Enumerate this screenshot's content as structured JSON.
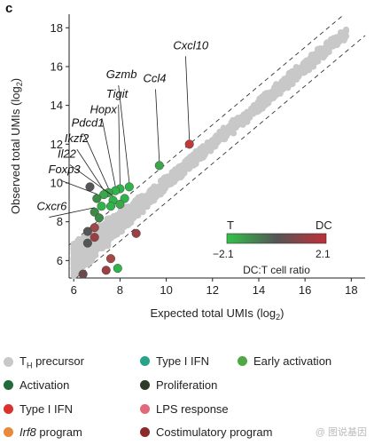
{
  "panel_label": "c",
  "chart_data": {
    "type": "scatter",
    "xlabel": "Expected total UMIs (log2)",
    "xlabel_main": "Expected total UMIs (log",
    "xlabel_sub": "2",
    "xlabel_end": ")",
    "ylabel": "Observed total UMIs (log2)",
    "ylabel_main": "Observed total UMIs (log",
    "ylabel_sub": "2",
    "ylabel_end": ")",
    "xlim": [
      5.8,
      18.6
    ],
    "ylim": [
      5.1,
      18.7
    ],
    "xticks": [
      "6",
      "8",
      "10",
      "12",
      "14",
      "16",
      "18"
    ],
    "xtick_values": [
      6,
      8,
      10,
      12,
      14,
      16,
      18
    ],
    "yticks": [
      "6",
      "8",
      "10",
      "12",
      "14",
      "16",
      "18"
    ],
    "ytick_values": [
      6,
      8,
      10,
      12,
      14,
      16,
      18
    ],
    "reference_lines": [
      {
        "name": "upper-bound",
        "offset": 1.0
      },
      {
        "name": "lower-bound",
        "offset": -1.0
      }
    ],
    "background_color": "#c8c8c8",
    "highlighted_points": [
      {
        "gene": "Cxcl10",
        "x": 11.0,
        "y": 12.0,
        "ratio": 2.1,
        "color": "#c0393b",
        "label_x": 10.3,
        "label_y": 16.9
      },
      {
        "gene": "Ccl4",
        "x": 9.7,
        "y": 10.9,
        "ratio": -1.3,
        "color": "#3aa84a",
        "label_x": 9.0,
        "label_y": 15.2
      },
      {
        "gene": "Gzmb",
        "x": 8.4,
        "y": 9.8,
        "ratio": -1.6,
        "color": "#2fb44a",
        "label_x": 7.4,
        "label_y": 15.4
      },
      {
        "gene": "Tigit",
        "x": 8.0,
        "y": 9.7,
        "ratio": -1.8,
        "color": "#2fb44a",
        "label_x": 7.4,
        "label_y": 14.4
      },
      {
        "gene": "Hopx",
        "x": 7.8,
        "y": 9.6,
        "ratio": -1.9,
        "color": "#2fb44a",
        "label_x": 6.7,
        "label_y": 13.6
      },
      {
        "gene": "Pdcd1",
        "x": 7.5,
        "y": 9.5,
        "ratio": -1.7,
        "color": "#3aa84a",
        "label_x": 5.9,
        "label_y": 12.9
      },
      {
        "gene": "Ikzf2",
        "x": 7.3,
        "y": 9.4,
        "ratio": -1.5,
        "color": "#3aa84a",
        "label_x": 5.6,
        "label_y": 12.1
      },
      {
        "gene": "Il22",
        "x": 7.7,
        "y": 9.1,
        "ratio": -1.9,
        "color": "#2fb44a",
        "label_x": 5.3,
        "label_y": 11.3
      },
      {
        "gene": "Foxp3",
        "x": 7.0,
        "y": 9.2,
        "ratio": -1.2,
        "color": "#3b8a45",
        "label_x": 4.9,
        "label_y": 10.5
      },
      {
        "gene": "Cxcr6",
        "x": 6.9,
        "y": 8.5,
        "ratio": -1.0,
        "color": "#3b8a45",
        "label_x": 4.4,
        "label_y": 8.6
      },
      {
        "gene": "",
        "x": 6.7,
        "y": 9.8,
        "ratio": -0.2,
        "color": "#555555"
      },
      {
        "gene": "",
        "x": 7.2,
        "y": 8.8,
        "ratio": -1.6,
        "color": "#2fb44a"
      },
      {
        "gene": "",
        "x": 7.6,
        "y": 8.8,
        "ratio": -1.6,
        "color": "#2fb44a"
      },
      {
        "gene": "",
        "x": 8.2,
        "y": 9.2,
        "ratio": -1.8,
        "color": "#2fb44a"
      },
      {
        "gene": "",
        "x": 8.0,
        "y": 8.9,
        "ratio": -1.5,
        "color": "#3aa84a"
      },
      {
        "gene": "",
        "x": 7.1,
        "y": 8.2,
        "ratio": -1.1,
        "color": "#3b8a45"
      },
      {
        "gene": "",
        "x": 6.9,
        "y": 7.7,
        "ratio": 0.9,
        "color": "#a04848"
      },
      {
        "gene": "",
        "x": 6.6,
        "y": 7.5,
        "ratio": 0.1,
        "color": "#555555"
      },
      {
        "gene": "",
        "x": 6.6,
        "y": 6.9,
        "ratio": 0.3,
        "color": "#555555"
      },
      {
        "gene": "",
        "x": 6.9,
        "y": 7.2,
        "ratio": 1.0,
        "color": "#9b3f44"
      },
      {
        "gene": "",
        "x": 8.7,
        "y": 7.4,
        "ratio": 1.1,
        "color": "#9b3f44"
      },
      {
        "gene": "",
        "x": 7.6,
        "y": 6.1,
        "ratio": 1.2,
        "color": "#a84646"
      },
      {
        "gene": "",
        "x": 7.9,
        "y": 5.6,
        "ratio": -1.9,
        "color": "#2fb44a"
      },
      {
        "gene": "",
        "x": 7.4,
        "y": 5.5,
        "ratio": 1.0,
        "color": "#9b3f44"
      },
      {
        "gene": "",
        "x": 6.4,
        "y": 5.3,
        "ratio": 0.6,
        "color": "#6a4a4a"
      }
    ]
  },
  "colorbar": {
    "left_label": "T",
    "right_label": "DC",
    "min_label": "−2.1",
    "max_label": "2.1",
    "title": "DC:T cell ratio",
    "color_start": "#33c24a",
    "color_mid": "#555555",
    "color_end": "#c0303a"
  },
  "legend": {
    "items": [
      {
        "label": "T",
        "sub": "H",
        "label_rest": " precursor",
        "color": "#c8c8c8",
        "italic": false
      },
      {
        "label": "Type I IFN",
        "sub": "",
        "label_rest": "",
        "color": "#27a38a",
        "italic": false
      },
      {
        "label": "Early activation",
        "sub": "",
        "label_rest": "",
        "color": "#4fa844",
        "italic": false
      },
      {
        "label": "Activation",
        "sub": "",
        "label_rest": "",
        "color": "#1f6b3a",
        "italic": false
      },
      {
        "label": "Proliferation",
        "sub": "",
        "label_rest": "",
        "color": "#2d3a2a",
        "italic": false
      },
      {
        "label": "Type I IFN",
        "sub": "",
        "label_rest": "",
        "color": "#d8332f",
        "italic": false
      },
      {
        "label": "LPS response",
        "sub": "",
        "label_rest": "",
        "color": "#e06a7a",
        "italic": false
      },
      {
        "label": "Irf8",
        "sub": "",
        "label_rest": " program",
        "color": "#e88a3a",
        "italic": true
      },
      {
        "label": "Costimulatory program",
        "sub": "",
        "label_rest": "",
        "color": "#8a2a2a",
        "italic": false
      }
    ]
  },
  "watermark": "@ 图说基因"
}
